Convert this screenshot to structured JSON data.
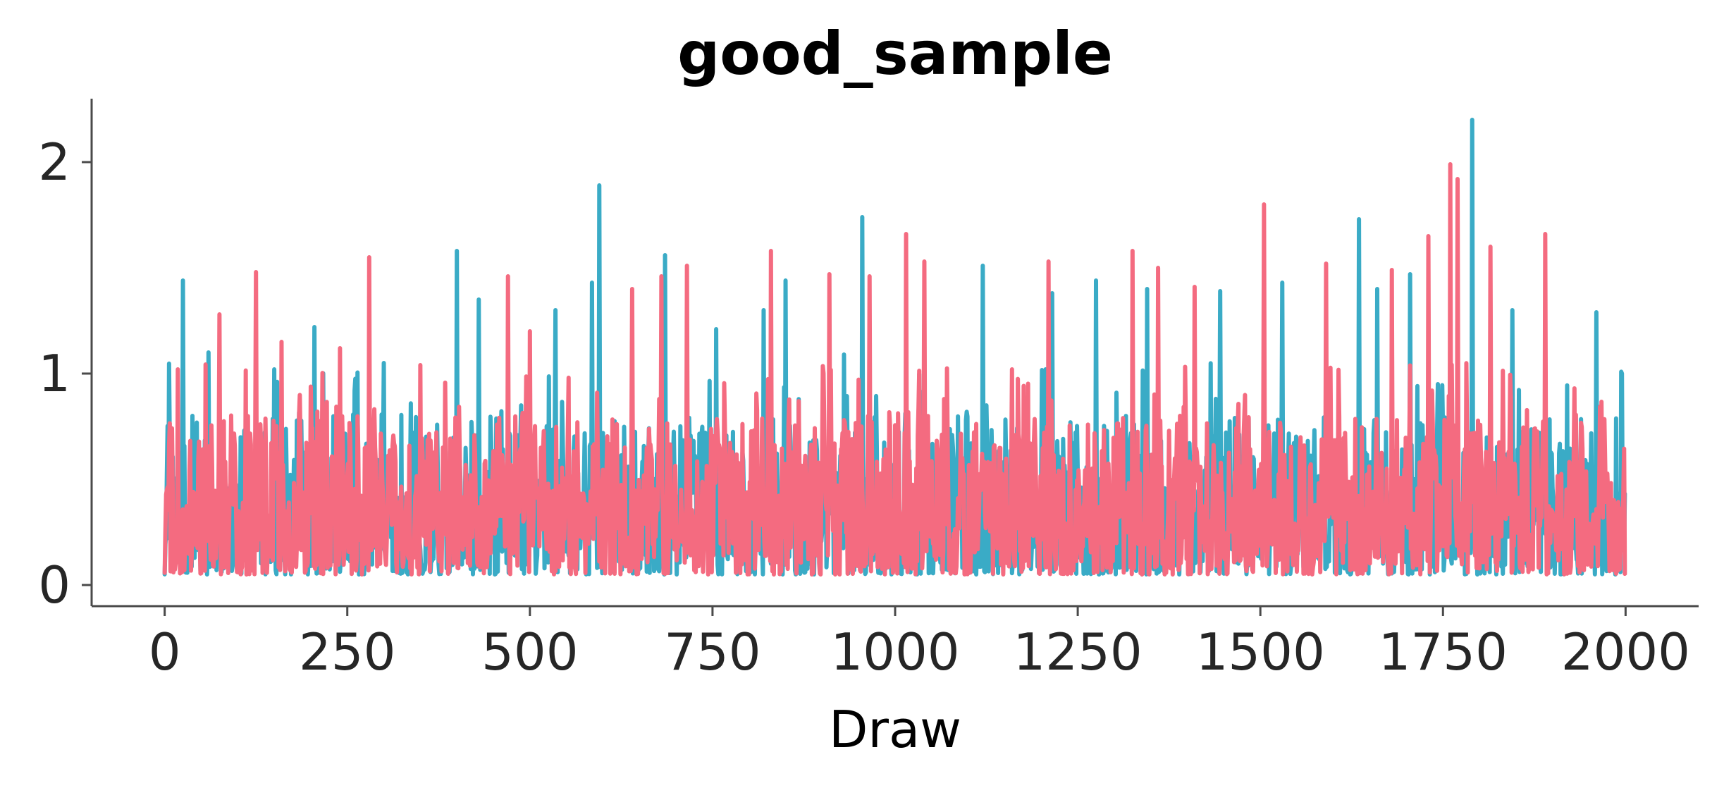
{
  "chart_data": {
    "type": "line",
    "title": "good_sample",
    "xlabel": "Draw",
    "ylabel": "",
    "xlim": [
      -100,
      2100
    ],
    "ylim": [
      -0.1,
      2.3
    ],
    "x_ticks": [
      0,
      250,
      500,
      750,
      1000,
      1250,
      1500,
      1750,
      2000
    ],
    "x_tick_labels": [
      "0",
      "250",
      "500",
      "750",
      "1000",
      "1250",
      "1500",
      "1750",
      "2000"
    ],
    "y_ticks": [
      0,
      1,
      2
    ],
    "y_tick_labels": [
      "0",
      "1",
      "2"
    ],
    "grid": false,
    "legend": "none",
    "n_draws": 2000,
    "series": [
      {
        "color": "#3aabc6",
        "peaks": [
          {
            "x": 25,
            "y": 1.44
          },
          {
            "x": 60,
            "y": 1.1
          },
          {
            "x": 150,
            "y": 1.02
          },
          {
            "x": 205,
            "y": 1.22
          },
          {
            "x": 300,
            "y": 1.05
          },
          {
            "x": 400,
            "y": 1.58
          },
          {
            "x": 430,
            "y": 1.35
          },
          {
            "x": 535,
            "y": 1.3
          },
          {
            "x": 585,
            "y": 1.43
          },
          {
            "x": 595,
            "y": 1.89
          },
          {
            "x": 685,
            "y": 1.56
          },
          {
            "x": 755,
            "y": 1.21
          },
          {
            "x": 820,
            "y": 1.3
          },
          {
            "x": 850,
            "y": 1.44
          },
          {
            "x": 930,
            "y": 1.09
          },
          {
            "x": 955,
            "y": 1.74
          },
          {
            "x": 1120,
            "y": 1.51
          },
          {
            "x": 1215,
            "y": 1.38
          },
          {
            "x": 1275,
            "y": 1.44
          },
          {
            "x": 1345,
            "y": 1.4
          },
          {
            "x": 1445,
            "y": 1.39
          },
          {
            "x": 1530,
            "y": 1.43
          },
          {
            "x": 1635,
            "y": 1.73
          },
          {
            "x": 1660,
            "y": 1.4
          },
          {
            "x": 1705,
            "y": 1.47
          },
          {
            "x": 1790,
            "y": 2.2
          },
          {
            "x": 1845,
            "y": 1.3
          },
          {
            "x": 1960,
            "y": 1.29
          },
          {
            "x": 1995,
            "y": 1.0
          }
        ]
      },
      {
        "color": "#f46b80",
        "peaks": [
          {
            "x": 18,
            "y": 1.02
          },
          {
            "x": 75,
            "y": 1.28
          },
          {
            "x": 125,
            "y": 1.48
          },
          {
            "x": 160,
            "y": 1.15
          },
          {
            "x": 240,
            "y": 1.12
          },
          {
            "x": 280,
            "y": 1.55
          },
          {
            "x": 350,
            "y": 1.04
          },
          {
            "x": 470,
            "y": 1.46
          },
          {
            "x": 500,
            "y": 1.2
          },
          {
            "x": 640,
            "y": 1.4
          },
          {
            "x": 680,
            "y": 1.46
          },
          {
            "x": 715,
            "y": 1.51
          },
          {
            "x": 830,
            "y": 1.58
          },
          {
            "x": 910,
            "y": 1.47
          },
          {
            "x": 965,
            "y": 1.46
          },
          {
            "x": 1015,
            "y": 1.66
          },
          {
            "x": 1040,
            "y": 1.53
          },
          {
            "x": 1160,
            "y": 1.02
          },
          {
            "x": 1210,
            "y": 1.53
          },
          {
            "x": 1325,
            "y": 1.58
          },
          {
            "x": 1360,
            "y": 1.5
          },
          {
            "x": 1410,
            "y": 1.41
          },
          {
            "x": 1505,
            "y": 1.8
          },
          {
            "x": 1590,
            "y": 1.52
          },
          {
            "x": 1680,
            "y": 1.49
          },
          {
            "x": 1730,
            "y": 1.65
          },
          {
            "x": 1760,
            "y": 1.99
          },
          {
            "x": 1770,
            "y": 1.92
          },
          {
            "x": 1815,
            "y": 1.6
          },
          {
            "x": 1890,
            "y": 1.66
          },
          {
            "x": 1930,
            "y": 0.93
          }
        ]
      }
    ]
  }
}
